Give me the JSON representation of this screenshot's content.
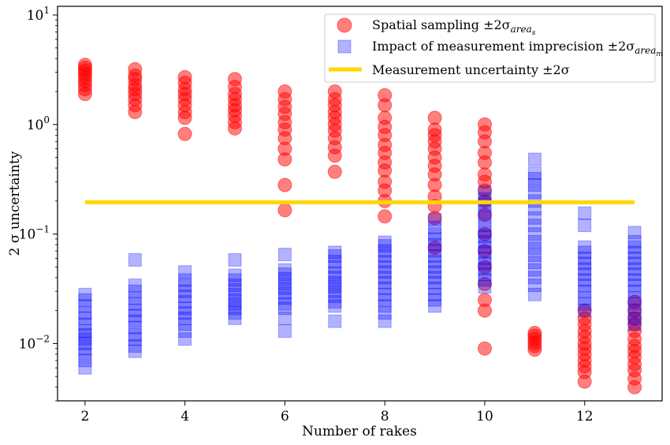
{
  "chart_data": {
    "type": "scatter",
    "xlabel": "Number of rakes",
    "ylabel": "2 σ uncertainty",
    "x_ticks": [
      2,
      4,
      6,
      8,
      10,
      12
    ],
    "y_scale": "log",
    "y_ticks": [
      {
        "value": 0.01,
        "base": "10",
        "exp": "−2"
      },
      {
        "value": 0.1,
        "base": "10",
        "exp": "−1"
      },
      {
        "value": 1,
        "base": "10",
        "exp": "0"
      },
      {
        "value": 10,
        "base": "10",
        "exp": "1"
      }
    ],
    "xlim": [
      1.45,
      13.55
    ],
    "ylim": [
      0.003,
      12
    ],
    "grid": false,
    "legend_position": "top-right",
    "series": [
      {
        "name": "Spatial sampling ±2σ_{area_s}",
        "legend_main": "Spatial sampling ±2σ",
        "legend_sub": "area",
        "legend_subsub": "s",
        "marker": "circle",
        "color": "#ff0000",
        "points": [
          [
            2,
            1.9
          ],
          [
            2,
            2.1
          ],
          [
            2,
            2.3
          ],
          [
            2,
            2.5
          ],
          [
            2,
            2.7
          ],
          [
            2,
            2.9
          ],
          [
            2,
            3.1
          ],
          [
            2,
            3.3
          ],
          [
            2,
            3.5
          ],
          [
            3,
            1.3
          ],
          [
            3,
            1.5
          ],
          [
            3,
            1.7
          ],
          [
            3,
            1.9
          ],
          [
            3,
            2.1
          ],
          [
            3,
            2.3
          ],
          [
            3,
            2.6
          ],
          [
            3,
            2.8
          ],
          [
            3,
            3.2
          ],
          [
            4,
            0.82
          ],
          [
            4,
            1.15
          ],
          [
            4,
            1.3
          ],
          [
            4,
            1.5
          ],
          [
            4,
            1.7
          ],
          [
            4,
            1.9
          ],
          [
            4,
            2.1
          ],
          [
            4,
            2.4
          ],
          [
            4,
            2.7
          ],
          [
            5,
            0.92
          ],
          [
            5,
            1.05
          ],
          [
            5,
            1.2
          ],
          [
            5,
            1.35
          ],
          [
            5,
            1.5
          ],
          [
            5,
            1.7
          ],
          [
            5,
            1.9
          ],
          [
            5,
            2.2
          ],
          [
            5,
            2.6
          ],
          [
            6,
            0.165
          ],
          [
            6,
            0.28
          ],
          [
            6,
            0.48
          ],
          [
            6,
            0.6
          ],
          [
            6,
            0.75
          ],
          [
            6,
            0.9
          ],
          [
            6,
            1.05
          ],
          [
            6,
            1.25
          ],
          [
            6,
            1.45
          ],
          [
            6,
            1.7
          ],
          [
            6,
            2.0
          ],
          [
            7,
            0.37
          ],
          [
            7,
            0.52
          ],
          [
            7,
            0.62
          ],
          [
            7,
            0.75
          ],
          [
            7,
            0.88
          ],
          [
            7,
            1.0
          ],
          [
            7,
            1.15
          ],
          [
            7,
            1.3
          ],
          [
            7,
            1.5
          ],
          [
            7,
            1.7
          ],
          [
            7,
            2.0
          ],
          [
            8,
            0.145
          ],
          [
            8,
            0.2
          ],
          [
            8,
            0.25
          ],
          [
            8,
            0.3
          ],
          [
            8,
            0.38
          ],
          [
            8,
            0.45
          ],
          [
            8,
            0.55
          ],
          [
            8,
            0.65
          ],
          [
            8,
            0.8
          ],
          [
            8,
            0.95
          ],
          [
            8,
            1.15
          ],
          [
            8,
            1.5
          ],
          [
            8,
            1.85
          ],
          [
            9,
            0.075
          ],
          [
            9,
            0.14
          ],
          [
            9,
            0.18
          ],
          [
            9,
            0.22
          ],
          [
            9,
            0.28
          ],
          [
            9,
            0.35
          ],
          [
            9,
            0.42
          ],
          [
            9,
            0.5
          ],
          [
            9,
            0.6
          ],
          [
            9,
            0.7
          ],
          [
            9,
            0.8
          ],
          [
            9,
            0.9
          ],
          [
            9,
            1.15
          ],
          [
            10,
            0.009
          ],
          [
            10,
            0.02
          ],
          [
            10,
            0.025
          ],
          [
            10,
            0.035
          ],
          [
            10,
            0.05
          ],
          [
            10,
            0.07
          ],
          [
            10,
            0.1
          ],
          [
            10,
            0.15
          ],
          [
            10,
            0.2
          ],
          [
            10,
            0.25
          ],
          [
            10,
            0.3
          ],
          [
            10,
            0.35
          ],
          [
            10,
            0.45
          ],
          [
            10,
            0.55
          ],
          [
            10,
            0.7
          ],
          [
            10,
            0.85
          ],
          [
            10,
            1.0
          ],
          [
            11,
            0.0088
          ],
          [
            11,
            0.0095
          ],
          [
            11,
            0.0102
          ],
          [
            11,
            0.011
          ],
          [
            11,
            0.0118
          ],
          [
            11,
            0.0125
          ],
          [
            12,
            0.0045
          ],
          [
            12,
            0.0055
          ],
          [
            12,
            0.0062
          ],
          [
            12,
            0.007
          ],
          [
            12,
            0.008
          ],
          [
            12,
            0.009
          ],
          [
            12,
            0.01
          ],
          [
            12,
            0.0115
          ],
          [
            12,
            0.013
          ],
          [
            12,
            0.015
          ],
          [
            12,
            0.017
          ],
          [
            12,
            0.02
          ],
          [
            13,
            0.004
          ],
          [
            13,
            0.0048
          ],
          [
            13,
            0.0057
          ],
          [
            13,
            0.0065
          ],
          [
            13,
            0.0075
          ],
          [
            13,
            0.0085
          ],
          [
            13,
            0.0095
          ],
          [
            13,
            0.011
          ],
          [
            13,
            0.013
          ],
          [
            13,
            0.015
          ],
          [
            13,
            0.017
          ],
          [
            13,
            0.02
          ],
          [
            13,
            0.024
          ]
        ]
      },
      {
        "name": "Impact of measurement imprecision ±2σ_{area_m}",
        "legend_main": "Impact of measurement imprecision ±2σ",
        "legend_sub": "area",
        "legend_subsub": "m",
        "marker": "square",
        "color": "#0000ff",
        "points": [
          [
            2,
            0.006
          ],
          [
            2,
            0.007
          ],
          [
            2,
            0.008
          ],
          [
            2,
            0.009
          ],
          [
            2,
            0.01
          ],
          [
            2,
            0.011
          ],
          [
            2,
            0.012
          ],
          [
            2,
            0.013
          ],
          [
            2,
            0.015
          ],
          [
            2,
            0.017
          ],
          [
            2,
            0.019
          ],
          [
            2,
            0.022
          ],
          [
            2,
            0.025
          ],
          [
            2,
            0.028
          ],
          [
            3,
            0.0085
          ],
          [
            3,
            0.0095
          ],
          [
            3,
            0.011
          ],
          [
            3,
            0.012
          ],
          [
            3,
            0.014
          ],
          [
            3,
            0.016
          ],
          [
            3,
            0.018
          ],
          [
            3,
            0.02
          ],
          [
            3,
            0.023
          ],
          [
            3,
            0.026
          ],
          [
            3,
            0.03
          ],
          [
            3,
            0.034
          ],
          [
            3,
            0.058
          ],
          [
            4,
            0.011
          ],
          [
            4,
            0.013
          ],
          [
            4,
            0.015
          ],
          [
            4,
            0.017
          ],
          [
            4,
            0.019
          ],
          [
            4,
            0.021
          ],
          [
            4,
            0.024
          ],
          [
            4,
            0.027
          ],
          [
            4,
            0.03
          ],
          [
            4,
            0.034
          ],
          [
            4,
            0.038
          ],
          [
            4,
            0.045
          ],
          [
            5,
            0.017
          ],
          [
            5,
            0.019
          ],
          [
            5,
            0.021
          ],
          [
            5,
            0.023
          ],
          [
            5,
            0.025
          ],
          [
            5,
            0.028
          ],
          [
            5,
            0.031
          ],
          [
            5,
            0.034
          ],
          [
            5,
            0.038
          ],
          [
            5,
            0.042
          ],
          [
            5,
            0.058
          ],
          [
            6,
            0.013
          ],
          [
            6,
            0.017
          ],
          [
            6,
            0.021
          ],
          [
            6,
            0.023
          ],
          [
            6,
            0.026
          ],
          [
            6,
            0.029
          ],
          [
            6,
            0.032
          ],
          [
            6,
            0.035
          ],
          [
            6,
            0.039
          ],
          [
            6,
            0.043
          ],
          [
            6,
            0.047
          ],
          [
            6,
            0.065
          ],
          [
            7,
            0.016
          ],
          [
            7,
            0.022
          ],
          [
            7,
            0.024
          ],
          [
            7,
            0.027
          ],
          [
            7,
            0.03
          ],
          [
            7,
            0.033
          ],
          [
            7,
            0.036
          ],
          [
            7,
            0.04
          ],
          [
            7,
            0.044
          ],
          [
            7,
            0.05
          ],
          [
            7,
            0.056
          ],
          [
            7,
            0.063
          ],
          [
            7,
            0.068
          ],
          [
            8,
            0.016
          ],
          [
            8,
            0.019
          ],
          [
            8,
            0.022
          ],
          [
            8,
            0.025
          ],
          [
            8,
            0.028
          ],
          [
            8,
            0.032
          ],
          [
            8,
            0.036
          ],
          [
            8,
            0.04
          ],
          [
            8,
            0.045
          ],
          [
            8,
            0.05
          ],
          [
            8,
            0.056
          ],
          [
            8,
            0.063
          ],
          [
            8,
            0.07
          ],
          [
            8,
            0.078
          ],
          [
            8,
            0.084
          ],
          [
            9,
            0.022
          ],
          [
            9,
            0.025
          ],
          [
            9,
            0.028
          ],
          [
            9,
            0.032
          ],
          [
            9,
            0.036
          ],
          [
            9,
            0.04
          ],
          [
            9,
            0.045
          ],
          [
            9,
            0.05
          ],
          [
            9,
            0.056
          ],
          [
            9,
            0.063
          ],
          [
            9,
            0.07
          ],
          [
            9,
            0.08
          ],
          [
            9,
            0.09
          ],
          [
            9,
            0.1
          ],
          [
            9,
            0.115
          ],
          [
            9,
            0.135
          ],
          [
            10,
            0.033
          ],
          [
            10,
            0.038
          ],
          [
            10,
            0.043
          ],
          [
            10,
            0.048
          ],
          [
            10,
            0.054
          ],
          [
            10,
            0.06
          ],
          [
            10,
            0.068
          ],
          [
            10,
            0.076
          ],
          [
            10,
            0.085
          ],
          [
            10,
            0.095
          ],
          [
            10,
            0.105
          ],
          [
            10,
            0.12
          ],
          [
            10,
            0.14
          ],
          [
            10,
            0.16
          ],
          [
            10,
            0.185
          ],
          [
            10,
            0.21
          ],
          [
            10,
            0.24
          ],
          [
            11,
            0.028
          ],
          [
            11,
            0.034
          ],
          [
            11,
            0.04
          ],
          [
            11,
            0.047
          ],
          [
            11,
            0.055
          ],
          [
            11,
            0.064
          ],
          [
            11,
            0.074
          ],
          [
            11,
            0.085
          ],
          [
            11,
            0.1
          ],
          [
            11,
            0.12
          ],
          [
            11,
            0.14
          ],
          [
            11,
            0.17
          ],
          [
            11,
            0.2
          ],
          [
            11,
            0.24
          ],
          [
            11,
            0.28
          ],
          [
            11,
            0.32
          ],
          [
            11,
            0.36
          ],
          [
            11,
            0.48
          ],
          [
            12,
            0.02
          ],
          [
            12,
            0.023
          ],
          [
            12,
            0.026
          ],
          [
            12,
            0.03
          ],
          [
            12,
            0.034
          ],
          [
            12,
            0.038
          ],
          [
            12,
            0.043
          ],
          [
            12,
            0.048
          ],
          [
            12,
            0.054
          ],
          [
            12,
            0.06
          ],
          [
            12,
            0.068
          ],
          [
            12,
            0.076
          ],
          [
            12,
            0.12
          ],
          [
            12,
            0.155
          ],
          [
            13,
            0.015
          ],
          [
            13,
            0.017
          ],
          [
            13,
            0.02
          ],
          [
            13,
            0.023
          ],
          [
            13,
            0.026
          ],
          [
            13,
            0.03
          ],
          [
            13,
            0.034
          ],
          [
            13,
            0.038
          ],
          [
            13,
            0.043
          ],
          [
            13,
            0.048
          ],
          [
            13,
            0.054
          ],
          [
            13,
            0.06
          ],
          [
            13,
            0.068
          ],
          [
            13,
            0.076
          ],
          [
            13,
            0.085
          ],
          [
            13,
            0.103
          ]
        ]
      },
      {
        "name": "Measurement uncertainty ±2σ",
        "legend_main": "Measurement uncertainty ±2σ",
        "marker": "line",
        "color": "#ffd700",
        "points": [
          [
            2,
            0.195
          ],
          [
            13,
            0.195
          ]
        ]
      }
    ]
  }
}
